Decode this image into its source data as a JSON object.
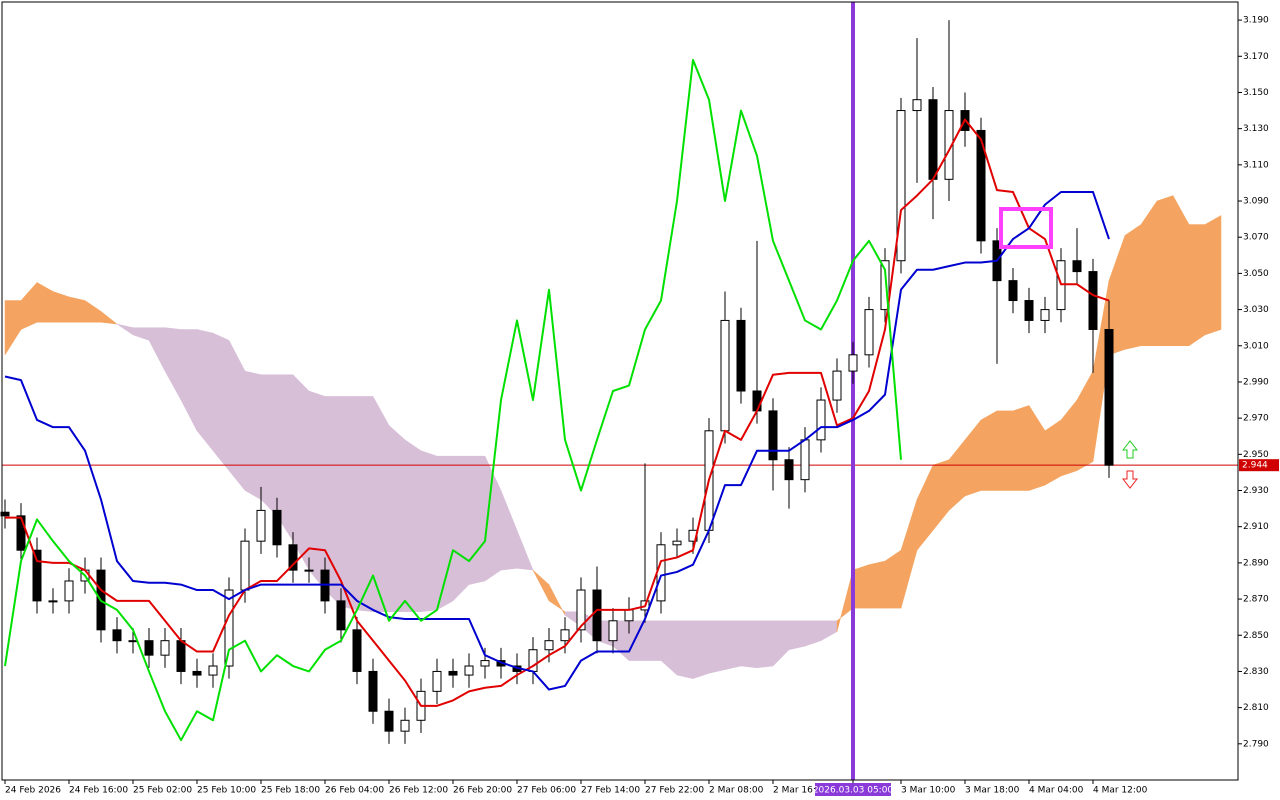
{
  "chart_data": {
    "type": "candlestick",
    "categories": [
      "24 Feb 2026",
      null,
      null,
      null,
      "24 Feb 16:00",
      null,
      null,
      null,
      "25 Feb 02:00",
      null,
      null,
      null,
      "25 Feb 10:00",
      null,
      null,
      null,
      "25 Feb 18:00",
      null,
      null,
      null,
      "26 Feb 04:00",
      null,
      null,
      null,
      "26 Feb 12:00",
      null,
      null,
      null,
      "26 Feb 20:00",
      null,
      null,
      null,
      "27 Feb 06:00",
      null,
      null,
      null,
      "27 Feb 14:00",
      null,
      null,
      null,
      "27 Feb 22:00",
      null,
      null,
      null,
      "2 Mar 08:00",
      null,
      null,
      null,
      "2 Mar 16:00",
      null,
      null,
      null,
      null,
      "2026.03.03 05:00",
      null,
      null,
      "3 Mar 10:00",
      null,
      null,
      null,
      "3 Mar 18:00",
      null,
      null,
      null,
      "4 Mar 04:00",
      null,
      null,
      null,
      "4 Mar 12:00",
      null,
      null,
      null,
      null,
      null,
      null,
      null,
      null
    ],
    "candles": {
      "open": [
        2.918,
        2.916,
        2.897,
        2.869,
        2.869,
        2.88,
        2.886,
        2.853,
        2.847,
        2.847,
        2.839,
        2.847,
        2.83,
        2.828,
        2.833,
        2.875,
        2.902,
        2.919,
        2.9,
        2.886,
        2.886,
        2.869,
        2.853,
        2.83,
        2.808,
        2.797,
        2.803,
        2.819,
        2.83,
        2.828,
        2.833,
        2.836,
        2.833,
        2.83,
        2.842,
        2.847,
        2.853,
        2.875,
        2.847,
        2.858,
        2.864,
        2.869,
        2.9,
        2.902,
        2.908,
        2.963,
        3.024,
        2.985,
        2.974,
        2.947,
        2.936,
        2.958,
        2.98,
        2.996,
        3.005,
        3.03,
        3.057,
        3.14,
        3.146,
        3.102,
        3.14,
        3.129,
        3.068,
        3.046,
        3.035,
        3.024,
        3.03,
        3.057,
        3.051,
        3.019,
        null,
        null,
        null,
        null,
        null,
        null,
        null
      ],
      "high": [
        2.925,
        2.923,
        2.904,
        2.876,
        2.887,
        2.893,
        2.893,
        2.86,
        2.854,
        2.854,
        2.854,
        2.854,
        2.837,
        2.84,
        2.882,
        2.909,
        2.932,
        2.926,
        2.907,
        2.893,
        2.893,
        2.876,
        2.86,
        2.837,
        2.815,
        2.81,
        2.826,
        2.837,
        2.837,
        2.84,
        2.843,
        2.843,
        2.84,
        2.849,
        2.854,
        2.86,
        2.882,
        2.888,
        2.865,
        2.871,
        2.945,
        2.907,
        2.909,
        2.915,
        2.97,
        3.04,
        3.031,
        3.068,
        2.981,
        2.954,
        2.965,
        2.987,
        3.003,
        3.012,
        3.037,
        3.064,
        3.147,
        3.18,
        3.153,
        3.19,
        3.15,
        3.136,
        3.075,
        3.053,
        3.042,
        3.037,
        3.064,
        3.075,
        3.058,
        3.035,
        null,
        null,
        null,
        null,
        null,
        null,
        null
      ],
      "low": [
        2.909,
        2.89,
        2.862,
        2.862,
        2.862,
        2.873,
        2.846,
        2.84,
        2.84,
        2.832,
        2.832,
        2.823,
        2.821,
        2.821,
        2.826,
        2.868,
        2.895,
        2.893,
        2.879,
        2.879,
        2.862,
        2.846,
        2.823,
        2.801,
        2.79,
        2.79,
        2.796,
        2.812,
        2.821,
        2.821,
        2.826,
        2.826,
        2.823,
        2.823,
        2.835,
        2.84,
        2.846,
        2.84,
        2.84,
        2.851,
        2.857,
        2.862,
        2.893,
        2.895,
        2.901,
        2.956,
        2.978,
        2.967,
        2.93,
        2.92,
        2.929,
        2.951,
        2.973,
        2.989,
        2.998,
        3.023,
        3.05,
        3.1,
        3.08,
        3.09,
        3.12,
        3.061,
        3.0,
        3.028,
        3.017,
        3.017,
        3.023,
        3.044,
        2.995,
        2.937,
        null,
        null,
        null,
        null,
        null,
        null,
        null
      ],
      "close": [
        2.916,
        2.897,
        2.869,
        2.869,
        2.88,
        2.886,
        2.853,
        2.847,
        2.847,
        2.839,
        2.847,
        2.83,
        2.828,
        2.833,
        2.875,
        2.902,
        2.919,
        2.9,
        2.886,
        2.886,
        2.869,
        2.853,
        2.83,
        2.808,
        2.797,
        2.803,
        2.819,
        2.83,
        2.828,
        2.833,
        2.836,
        2.833,
        2.83,
        2.842,
        2.847,
        2.853,
        2.875,
        2.847,
        2.858,
        2.864,
        2.869,
        2.9,
        2.902,
        2.908,
        2.963,
        3.024,
        2.985,
        2.974,
        2.947,
        2.936,
        2.958,
        2.98,
        2.996,
        3.005,
        3.03,
        3.057,
        3.14,
        3.146,
        3.102,
        3.14,
        3.129,
        3.068,
        3.046,
        3.035,
        3.024,
        3.03,
        3.057,
        3.051,
        3.019,
        2.944,
        null,
        null,
        null,
        null,
        null,
        null,
        null
      ],
      "up_color": "#ffffff",
      "down_color": "#000000",
      "outline_color": "#000000"
    },
    "lines": [
      {
        "color": "#e00000",
        "values": [
          2.915,
          2.915,
          2.891,
          2.89,
          2.89,
          2.886,
          2.875,
          2.869,
          2.869,
          2.869,
          2.858,
          2.847,
          2.841,
          2.841,
          2.861,
          2.875,
          2.88,
          2.88,
          2.889,
          2.898,
          2.897,
          2.88,
          2.858,
          2.847,
          2.836,
          2.825,
          2.811,
          2.811,
          2.814,
          2.819,
          2.821,
          2.822,
          2.828,
          2.833,
          2.839,
          2.844,
          2.855,
          2.864,
          2.864,
          2.864,
          2.866,
          2.891,
          2.893,
          2.897,
          2.936,
          2.963,
          2.958,
          2.974,
          2.994,
          2.995,
          2.995,
          2.995,
          2.966,
          2.97,
          2.985,
          3.019,
          3.085,
          3.093,
          3.102,
          3.118,
          3.135,
          3.124,
          3.096,
          3.095,
          3.075,
          3.069,
          3.044,
          3.044,
          3.038,
          3.035,
          null,
          null,
          null,
          null,
          null,
          null,
          null
        ]
      },
      {
        "color": "#0000d0",
        "values": [
          2.993,
          2.991,
          2.969,
          2.965,
          2.965,
          2.952,
          2.925,
          2.891,
          2.88,
          2.879,
          2.879,
          2.878,
          2.875,
          2.875,
          2.87,
          2.875,
          2.878,
          2.878,
          2.878,
          2.878,
          2.878,
          2.878,
          2.869,
          2.864,
          2.86,
          2.859,
          2.859,
          2.859,
          2.859,
          2.859,
          2.839,
          2.835,
          2.832,
          2.83,
          2.82,
          2.822,
          2.836,
          2.841,
          2.841,
          2.841,
          2.859,
          2.883,
          2.885,
          2.889,
          2.908,
          2.933,
          2.933,
          2.952,
          2.952,
          2.952,
          2.958,
          2.965,
          2.965,
          2.969,
          2.974,
          2.983,
          3.041,
          3.052,
          3.052,
          3.054,
          3.056,
          3.056,
          3.057,
          3.069,
          3.075,
          3.088,
          3.095,
          3.095,
          3.095,
          3.069,
          null,
          null,
          null,
          null,
          null,
          null,
          null
        ]
      },
      {
        "color": "#00e000",
        "values": [
          2.833,
          2.891,
          2.914,
          2.902,
          2.891,
          2.883,
          2.869,
          2.864,
          2.853,
          2.83,
          2.808,
          2.792,
          2.808,
          2.803,
          2.842,
          2.847,
          2.83,
          2.839,
          2.833,
          2.83,
          2.842,
          2.847,
          2.864,
          2.883,
          2.858,
          2.869,
          2.858,
          2.864,
          2.897,
          2.891,
          2.902,
          2.98,
          3.024,
          2.98,
          3.041,
          2.958,
          2.93,
          2.958,
          2.985,
          2.988,
          3.019,
          3.035,
          3.09,
          3.168,
          3.146,
          3.09,
          3.14,
          3.115,
          3.068,
          3.046,
          3.024,
          3.019,
          3.035,
          3.057,
          3.068,
          3.052,
          2.947,
          null,
          null,
          null,
          null,
          null,
          null,
          null,
          null,
          null,
          null,
          null,
          null,
          null,
          null,
          null,
          null,
          null,
          null,
          null
        ]
      }
    ],
    "cloud": {
      "span_a": [
        3.035,
        3.035,
        3.045,
        3.04,
        3.037,
        3.035,
        3.029,
        3.022,
        3.016,
        3.013,
        2.996,
        2.98,
        2.963,
        2.952,
        2.941,
        2.93,
        2.925,
        2.916,
        2.902,
        2.886,
        2.875,
        2.866,
        2.864,
        2.863,
        2.863,
        2.863,
        2.863,
        2.864,
        2.869,
        2.878,
        2.88,
        2.886,
        2.887,
        2.886,
        2.878,
        2.861,
        2.855,
        2.847,
        2.844,
        2.836,
        2.836,
        2.836,
        2.828,
        2.826,
        2.829,
        2.831,
        2.833,
        2.832,
        2.833,
        2.842,
        2.844,
        2.847,
        2.852,
        2.886,
        2.889,
        2.891,
        2.897,
        2.925,
        2.944,
        2.947,
        2.958,
        2.969,
        2.974,
        2.974,
        2.977,
        2.963,
        2.969,
        2.98,
        2.996,
        3.046,
        3.071,
        3.077,
        3.09,
        3.093,
        3.077,
        3.077,
        3.082
      ],
      "span_b": [
        3.005,
        3.019,
        3.023,
        3.023,
        3.023,
        3.023,
        3.023,
        3.022,
        3.02,
        3.02,
        3.02,
        3.019,
        3.019,
        3.017,
        3.013,
        2.996,
        2.994,
        2.994,
        2.994,
        2.985,
        2.982,
        2.982,
        2.982,
        2.982,
        2.966,
        2.958,
        2.952,
        2.949,
        2.949,
        2.949,
        2.949,
        2.93,
        2.908,
        2.886,
        2.869,
        2.863,
        2.863,
        2.858,
        2.858,
        2.858,
        2.858,
        2.858,
        2.858,
        2.858,
        2.858,
        2.858,
        2.858,
        2.858,
        2.858,
        2.858,
        2.858,
        2.858,
        2.858,
        2.865,
        2.865,
        2.865,
        2.865,
        2.897,
        2.908,
        2.919,
        2.927,
        2.93,
        2.93,
        2.93,
        2.93,
        2.933,
        2.938,
        2.941,
        2.946,
        3.005,
        3.008,
        3.01,
        3.01,
        3.01,
        3.01,
        3.016,
        3.019
      ],
      "bull_color": "#f4a460",
      "bear_color": "#d8bfd8"
    },
    "crosshair": {
      "category": 53,
      "color": "#8a3ad8"
    },
    "price_line": {
      "value": 2.944,
      "label": "2.944",
      "color": "#d00000"
    },
    "ylim": [
      2.77,
      3.2
    ],
    "yticks": [
      {
        "value": 2.79,
        "label": "2.790"
      },
      {
        "value": 2.81,
        "label": "2.810"
      },
      {
        "value": 2.83,
        "label": "2.830"
      },
      {
        "value": 2.85,
        "label": "2.850"
      },
      {
        "value": 2.87,
        "label": "2.870"
      },
      {
        "value": 2.89,
        "label": "2.890"
      },
      {
        "value": 2.91,
        "label": "2.910"
      },
      {
        "value": 2.93,
        "label": "2.930"
      },
      {
        "value": 2.95,
        "label": "2.950"
      },
      {
        "value": 2.97,
        "label": "2.970"
      },
      {
        "value": 2.99,
        "label": "2.990"
      },
      {
        "value": 3.01,
        "label": "3.010"
      },
      {
        "value": 3.03,
        "label": "3.030"
      },
      {
        "value": 3.05,
        "label": "3.050"
      },
      {
        "value": 3.07,
        "label": "3.070"
      },
      {
        "value": 3.09,
        "label": "3.090"
      },
      {
        "value": 3.11,
        "label": "3.110"
      },
      {
        "value": 3.13,
        "label": "3.130"
      },
      {
        "value": 3.15,
        "label": "3.150"
      },
      {
        "value": 3.17,
        "label": "3.170"
      },
      {
        "value": 3.19,
        "label": "3.190"
      }
    ]
  }
}
